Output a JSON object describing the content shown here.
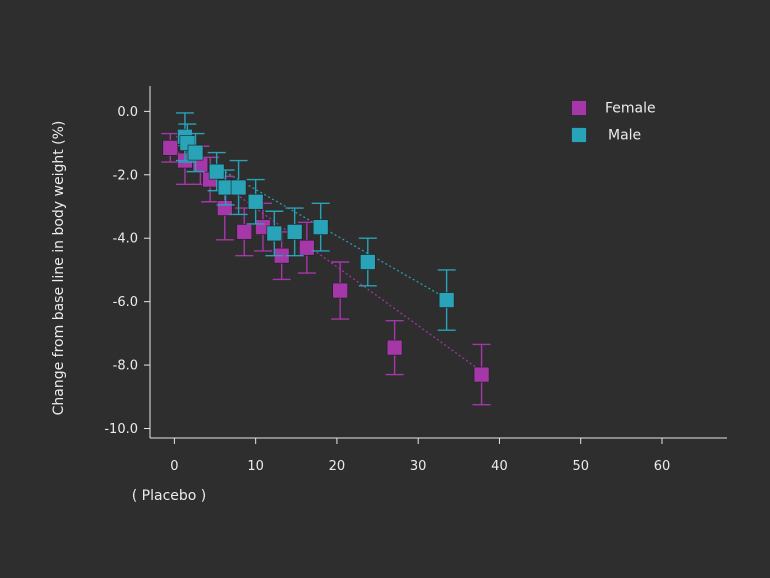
{
  "chart_data": {
    "type": "scatter",
    "title": "",
    "xlabel": "",
    "ylabel": "Change from base line in body weight (%)",
    "x_note": "( Placebo )",
    "xlim": [
      -3,
      68
    ],
    "ylim": [
      -10.3,
      0.8
    ],
    "xticks": [
      0,
      10,
      20,
      30,
      40,
      50,
      60
    ],
    "yticks": [
      0,
      -2,
      -4,
      -6,
      -8,
      -10
    ],
    "ytick_labels": [
      "0.0",
      "-2.0",
      "-4.0",
      "-6.0",
      "-8.0",
      "-10.0"
    ],
    "grid": false,
    "legend_position": "top-right",
    "series": [
      {
        "name": "Female",
        "color": "#a637a8",
        "points": [
          {
            "x": -0.5,
            "y": -1.15,
            "err": 0.45
          },
          {
            "x": 1.3,
            "y": -1.55,
            "err": 0.75
          },
          {
            "x": 3.2,
            "y": -1.7,
            "err": 0.6
          },
          {
            "x": 4.4,
            "y": -2.15,
            "err": 0.7
          },
          {
            "x": 6.2,
            "y": -3.05,
            "err": 1.0
          },
          {
            "x": 8.6,
            "y": -3.8,
            "err": 0.75
          },
          {
            "x": 10.9,
            "y": -3.65,
            "err": 0.75
          },
          {
            "x": 13.2,
            "y": -4.55,
            "err": 0.75
          },
          {
            "x": 16.3,
            "y": -4.3,
            "err": 0.8
          },
          {
            "x": 20.4,
            "y": -5.65,
            "err": 0.9
          },
          {
            "x": 27.1,
            "y": -7.45,
            "err": 0.85
          },
          {
            "x": 37.8,
            "y": -8.3,
            "err": 0.95
          }
        ],
        "trend": [
          [
            0,
            -1.2
          ],
          [
            37.8,
            -8.2
          ]
        ]
      },
      {
        "name": "Male",
        "color": "#29a3b8",
        "points": [
          {
            "x": 1.3,
            "y": -0.8,
            "err": 0.75
          },
          {
            "x": 1.6,
            "y": -1.0,
            "err": 0.6
          },
          {
            "x": 2.6,
            "y": -1.3,
            "err": 0.6
          },
          {
            "x": 5.2,
            "y": -1.9,
            "err": 0.6
          },
          {
            "x": 6.3,
            "y": -2.4,
            "err": 0.55
          },
          {
            "x": 7.9,
            "y": -2.4,
            "err": 0.85
          },
          {
            "x": 10.0,
            "y": -2.85,
            "err": 0.7
          },
          {
            "x": 12.3,
            "y": -3.85,
            "err": 0.7
          },
          {
            "x": 14.8,
            "y": -3.8,
            "err": 0.75
          },
          {
            "x": 18.0,
            "y": -3.65,
            "err": 0.75
          },
          {
            "x": 23.8,
            "y": -4.75,
            "err": 0.75
          },
          {
            "x": 33.5,
            "y": -5.95,
            "err": 0.95
          }
        ],
        "trend": [
          [
            0,
            -1.0
          ],
          [
            33.5,
            -5.9
          ]
        ]
      }
    ]
  }
}
